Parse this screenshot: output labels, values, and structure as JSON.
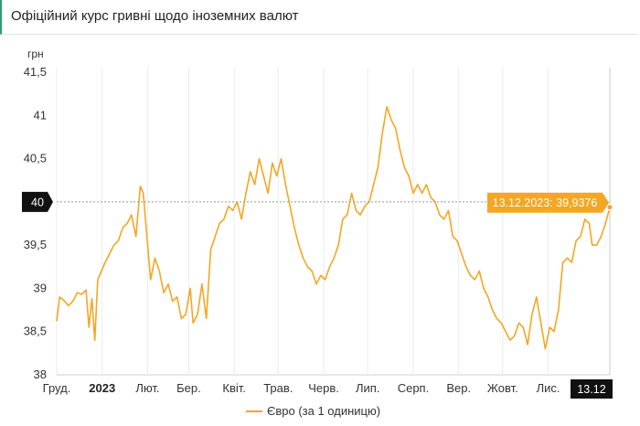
{
  "header": {
    "title": "Офіційний курс гривні щодо іноземних валют"
  },
  "chart_data": {
    "type": "line",
    "y_unit": "грн",
    "ylim": [
      38,
      41.5
    ],
    "y_ticks": [
      {
        "value": 38,
        "label": "38"
      },
      {
        "value": 38.5,
        "label": "38,5"
      },
      {
        "value": 39,
        "label": "39"
      },
      {
        "value": 39.5,
        "label": "39,5"
      },
      {
        "value": 40,
        "label": "40"
      },
      {
        "value": 40.5,
        "label": "40,5"
      },
      {
        "value": 41,
        "label": "41"
      },
      {
        "value": 41.5,
        "label": "41,5"
      }
    ],
    "x_range": [
      "2022-12-01",
      "2023-12-13"
    ],
    "x_ticks": [
      {
        "date": "2022-12-01",
        "label": "Груд.",
        "bold": false
      },
      {
        "date": "2023-01-01",
        "label": "2023",
        "bold": true
      },
      {
        "date": "2023-02-01",
        "label": "Лют.",
        "bold": false
      },
      {
        "date": "2023-03-01",
        "label": "Бер.",
        "bold": false
      },
      {
        "date": "2023-04-01",
        "label": "Квіт.",
        "bold": false
      },
      {
        "date": "2023-05-01",
        "label": "Трав.",
        "bold": false
      },
      {
        "date": "2023-06-01",
        "label": "Черв.",
        "bold": false
      },
      {
        "date": "2023-07-01",
        "label": "Лип.",
        "bold": false
      },
      {
        "date": "2023-08-01",
        "label": "Серп.",
        "bold": false
      },
      {
        "date": "2023-09-01",
        "label": "Вер.",
        "bold": false
      },
      {
        "date": "2023-10-01",
        "label": "Жовт.",
        "bold": false
      },
      {
        "date": "2023-11-01",
        "label": "Лис.",
        "bold": false
      }
    ],
    "series": [
      {
        "name": "Євро (за 1 одиницю)",
        "color": "#f5a623",
        "points": [
          [
            "2022-12-01",
            38.62
          ],
          [
            "2022-12-03",
            38.9
          ],
          [
            "2022-12-06",
            38.86
          ],
          [
            "2022-12-09",
            38.8
          ],
          [
            "2022-12-12",
            38.85
          ],
          [
            "2022-12-15",
            38.95
          ],
          [
            "2022-12-18",
            38.93
          ],
          [
            "2022-12-21",
            38.98
          ],
          [
            "2022-12-23",
            38.55
          ],
          [
            "2022-12-25",
            38.88
          ],
          [
            "2022-12-27",
            38.4
          ],
          [
            "2022-12-29",
            39.1
          ],
          [
            "2023-01-03",
            39.3
          ],
          [
            "2023-01-06",
            39.4
          ],
          [
            "2023-01-09",
            39.5
          ],
          [
            "2023-01-12",
            39.55
          ],
          [
            "2023-01-15",
            39.7
          ],
          [
            "2023-01-18",
            39.75
          ],
          [
            "2023-01-21",
            39.85
          ],
          [
            "2023-01-24",
            39.6
          ],
          [
            "2023-01-27",
            40.18
          ],
          [
            "2023-01-29",
            40.1
          ],
          [
            "2023-02-01",
            39.5
          ],
          [
            "2023-02-03",
            39.1
          ],
          [
            "2023-02-06",
            39.35
          ],
          [
            "2023-02-09",
            39.2
          ],
          [
            "2023-02-12",
            38.95
          ],
          [
            "2023-02-15",
            39.05
          ],
          [
            "2023-02-18",
            38.85
          ],
          [
            "2023-02-21",
            38.9
          ],
          [
            "2023-02-24",
            38.65
          ],
          [
            "2023-02-27",
            38.7
          ],
          [
            "2023-03-02",
            39.0
          ],
          [
            "2023-03-04",
            38.6
          ],
          [
            "2023-03-07",
            38.7
          ],
          [
            "2023-03-10",
            39.05
          ],
          [
            "2023-03-13",
            38.65
          ],
          [
            "2023-03-16",
            39.45
          ],
          [
            "2023-03-19",
            39.6
          ],
          [
            "2023-03-22",
            39.75
          ],
          [
            "2023-03-25",
            39.8
          ],
          [
            "2023-03-28",
            39.95
          ],
          [
            "2023-03-31",
            39.9
          ],
          [
            "2023-04-03",
            40.0
          ],
          [
            "2023-04-06",
            39.8
          ],
          [
            "2023-04-09",
            40.1
          ],
          [
            "2023-04-12",
            40.35
          ],
          [
            "2023-04-15",
            40.2
          ],
          [
            "2023-04-18",
            40.5
          ],
          [
            "2023-04-21",
            40.3
          ],
          [
            "2023-04-24",
            40.1
          ],
          [
            "2023-04-27",
            40.45
          ],
          [
            "2023-04-30",
            40.3
          ],
          [
            "2023-05-03",
            40.5
          ],
          [
            "2023-05-06",
            40.2
          ],
          [
            "2023-05-09",
            39.95
          ],
          [
            "2023-05-12",
            39.7
          ],
          [
            "2023-05-15",
            39.5
          ],
          [
            "2023-05-18",
            39.35
          ],
          [
            "2023-05-21",
            39.25
          ],
          [
            "2023-05-24",
            39.2
          ],
          [
            "2023-05-27",
            39.05
          ],
          [
            "2023-05-30",
            39.15
          ],
          [
            "2023-06-02",
            39.1
          ],
          [
            "2023-06-05",
            39.25
          ],
          [
            "2023-06-08",
            39.35
          ],
          [
            "2023-06-11",
            39.5
          ],
          [
            "2023-06-14",
            39.8
          ],
          [
            "2023-06-17",
            39.85
          ],
          [
            "2023-06-20",
            40.1
          ],
          [
            "2023-06-23",
            39.9
          ],
          [
            "2023-06-26",
            39.85
          ],
          [
            "2023-06-29",
            39.95
          ],
          [
            "2023-07-02",
            40.0
          ],
          [
            "2023-07-05",
            40.2
          ],
          [
            "2023-07-08",
            40.4
          ],
          [
            "2023-07-11",
            40.8
          ],
          [
            "2023-07-14",
            41.1
          ],
          [
            "2023-07-17",
            40.95
          ],
          [
            "2023-07-20",
            40.85
          ],
          [
            "2023-07-23",
            40.6
          ],
          [
            "2023-07-26",
            40.4
          ],
          [
            "2023-07-29",
            40.3
          ],
          [
            "2023-08-01",
            40.1
          ],
          [
            "2023-08-04",
            40.2
          ],
          [
            "2023-08-07",
            40.1
          ],
          [
            "2023-08-10",
            40.2
          ],
          [
            "2023-08-13",
            40.05
          ],
          [
            "2023-08-16",
            40.0
          ],
          [
            "2023-08-19",
            39.85
          ],
          [
            "2023-08-22",
            39.8
          ],
          [
            "2023-08-25",
            39.9
          ],
          [
            "2023-08-28",
            39.6
          ],
          [
            "2023-08-31",
            39.55
          ],
          [
            "2023-09-03",
            39.4
          ],
          [
            "2023-09-06",
            39.25
          ],
          [
            "2023-09-09",
            39.15
          ],
          [
            "2023-09-12",
            39.1
          ],
          [
            "2023-09-15",
            39.2
          ],
          [
            "2023-09-18",
            39.0
          ],
          [
            "2023-09-21",
            38.9
          ],
          [
            "2023-09-24",
            38.75
          ],
          [
            "2023-09-27",
            38.65
          ],
          [
            "2023-09-30",
            38.6
          ],
          [
            "2023-10-03",
            38.5
          ],
          [
            "2023-10-06",
            38.4
          ],
          [
            "2023-10-09",
            38.45
          ],
          [
            "2023-10-12",
            38.6
          ],
          [
            "2023-10-15",
            38.55
          ],
          [
            "2023-10-18",
            38.35
          ],
          [
            "2023-10-21",
            38.7
          ],
          [
            "2023-10-24",
            38.9
          ],
          [
            "2023-10-27",
            38.6
          ],
          [
            "2023-10-30",
            38.3
          ],
          [
            "2023-11-02",
            38.55
          ],
          [
            "2023-11-05",
            38.5
          ],
          [
            "2023-11-08",
            38.75
          ],
          [
            "2023-11-11",
            39.3
          ],
          [
            "2023-11-14",
            39.35
          ],
          [
            "2023-11-17",
            39.3
          ],
          [
            "2023-11-20",
            39.55
          ],
          [
            "2023-11-23",
            39.6
          ],
          [
            "2023-11-26",
            39.8
          ],
          [
            "2023-11-29",
            39.75
          ],
          [
            "2023-12-01",
            39.5
          ],
          [
            "2023-12-04",
            39.5
          ],
          [
            "2023-12-07",
            39.6
          ],
          [
            "2023-12-10",
            39.75
          ],
          [
            "2023-12-13",
            39.9376
          ]
        ]
      }
    ],
    "crosshair_value_label": "40",
    "tooltip": "13.12.2023: 39,9376",
    "x_cursor_label": "13.12",
    "legend": {
      "label": "Євро (за 1 одиницю)",
      "placement": "bottom-center"
    },
    "grid": "vertical"
  }
}
